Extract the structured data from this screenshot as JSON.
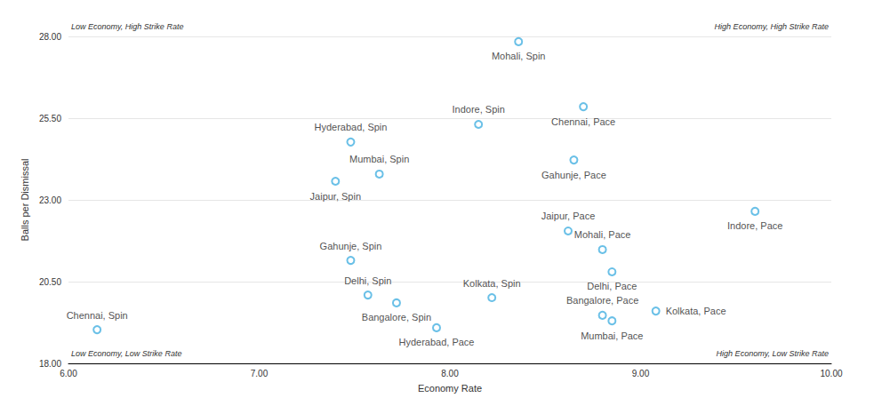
{
  "chart_data": {
    "type": "scatter",
    "x_label": "Economy Rate",
    "y_label": "Balls per Dismissal",
    "annotations": [
      "Low Economy, High Strike Rate",
      "High Economy, High Strike Rate",
      "Low Economy, Low Strike Rate",
      "High Economy, Low Strike Rate"
    ],
    "labels": [
      "Mohali, Spin",
      "Indore, Spin",
      "Chennai, Pace",
      "Hyderabad, Spin",
      "Gahunje, Pace",
      "Mumbai, Spin",
      "Jaipur, Spin",
      "Indore, Pace",
      "Jaipur, Pace",
      "Mohali, Pace",
      "Gahunje, Spin",
      "Delhi, Pace",
      "Delhi, Spin",
      "Bangalore, Spin",
      "Kolkata, Spin",
      "Kolkata, Pace",
      "Bangalore, Pace",
      "Mumbai, Pace",
      "Hyderabad, Pace",
      "Chennai, Spin"
    ],
    "x": [
      8.36,
      8.15,
      8.7,
      7.48,
      8.65,
      7.63,
      7.4,
      9.6,
      8.62,
      8.8,
      7.48,
      8.85,
      7.57,
      7.72,
      8.22,
      9.08,
      8.8,
      8.85,
      7.93,
      6.15
    ],
    "values": [
      27.84,
      25.31,
      25.85,
      24.77,
      24.22,
      23.79,
      23.57,
      22.65,
      22.05,
      21.48,
      21.15,
      20.8,
      20.09,
      19.85,
      20.01,
      19.6,
      19.47,
      19.3,
      19.09,
      19.03
    ],
    "color": "#45b0e1",
    "marker": "hollow circle",
    "xlim": [
      6,
      10
    ],
    "xticks": [
      {
        "value": 6,
        "label": "6.00"
      },
      {
        "value": 7,
        "label": "7.00"
      },
      {
        "value": 8,
        "label": "8.00"
      },
      {
        "value": 9,
        "label": "9.00"
      },
      {
        "value": 10,
        "label": "10.00"
      }
    ],
    "ylim": [
      18,
      28
    ],
    "yticks": [
      {
        "value": 18,
        "label": "18.00"
      },
      {
        "value": 20.5,
        "label": "20.50"
      },
      {
        "value": 23,
        "label": "23.00"
      },
      {
        "value": 25.5,
        "label": "25.50"
      },
      {
        "value": 28,
        "label": "28.00"
      }
    ],
    "grid": true
  }
}
